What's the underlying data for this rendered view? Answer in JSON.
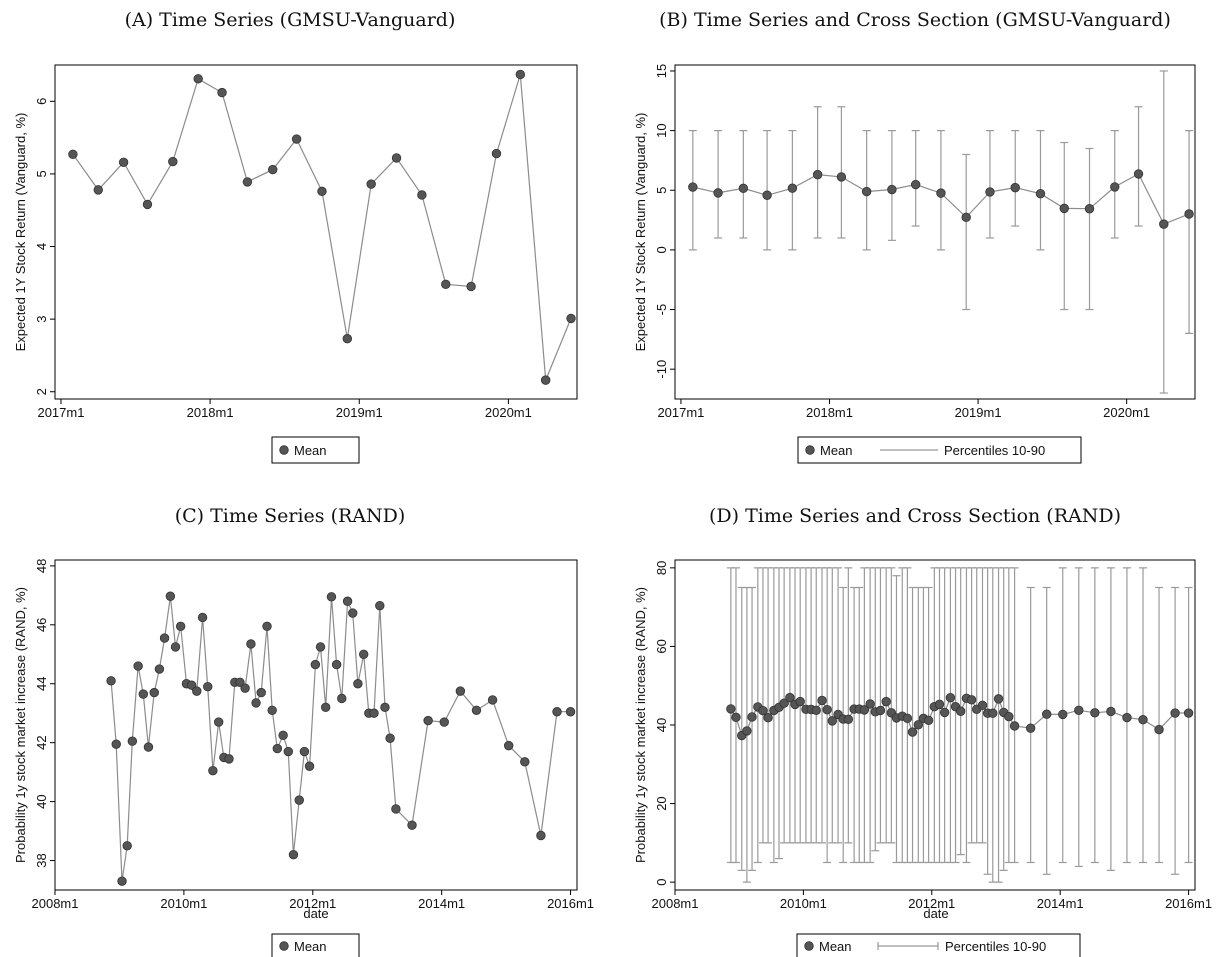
{
  "chart_data": [
    {
      "id": "A",
      "type": "line",
      "title": "(A) Time Series (GMSU-Vanguard)",
      "xlabel": "",
      "ylabel": "Expected 1Y Stock Return (Vanguard, %)",
      "x_ticks": [
        {
          "v": 2017.0,
          "label": "2017m1"
        },
        {
          "v": 2018.0,
          "label": "2018m1"
        },
        {
          "v": 2019.0,
          "label": "2019m1"
        },
        {
          "v": 2020.0,
          "label": "2020m1"
        }
      ],
      "y_ticks": [
        2,
        3,
        4,
        5,
        6
      ],
      "xlim": [
        2016.96,
        2020.46
      ],
      "ylim": [
        1.9,
        6.5
      ],
      "grid": false,
      "legend": {
        "position": "bottom",
        "entries": [
          "Mean"
        ]
      },
      "series": [
        {
          "name": "Mean",
          "x": [
            2017.08,
            2017.25,
            2017.42,
            2017.58,
            2017.75,
            2017.92,
            2018.08,
            2018.25,
            2018.42,
            2018.58,
            2018.75,
            2018.92,
            2019.08,
            2019.25,
            2019.42,
            2019.58,
            2019.75,
            2019.92,
            2020.08,
            2020.25,
            2020.42
          ],
          "y": [
            5.27,
            4.78,
            5.16,
            4.58,
            5.17,
            6.31,
            6.12,
            4.89,
            5.06,
            5.48,
            4.76,
            2.73,
            4.86,
            5.22,
            4.71,
            3.48,
            3.45,
            5.28,
            6.37,
            2.16,
            3.01
          ]
        }
      ]
    },
    {
      "id": "B",
      "type": "line",
      "title": "(B) Time Series and Cross Section (GMSU-Vanguard)",
      "xlabel": "",
      "ylabel": "Expected 1Y Stock Return (Vanguard, %)",
      "x_ticks": [
        {
          "v": 2017.0,
          "label": "2017m1"
        },
        {
          "v": 2018.0,
          "label": "2018m1"
        },
        {
          "v": 2019.0,
          "label": "2019m1"
        },
        {
          "v": 2020.0,
          "label": "2020m1"
        }
      ],
      "y_ticks": [
        -10,
        -5,
        0,
        5,
        10,
        15
      ],
      "xlim": [
        2016.96,
        2020.46
      ],
      "ylim": [
        -12.5,
        15.5
      ],
      "grid": false,
      "legend": {
        "position": "bottom",
        "entries": [
          "Mean",
          "Percentiles 10-90"
        ]
      },
      "series": [
        {
          "name": "Mean",
          "x": [
            2017.08,
            2017.25,
            2017.42,
            2017.58,
            2017.75,
            2017.92,
            2018.08,
            2018.25,
            2018.42,
            2018.58,
            2018.75,
            2018.92,
            2019.08,
            2019.25,
            2019.42,
            2019.58,
            2019.75,
            2019.92,
            2020.08,
            2020.25,
            2020.42
          ],
          "y": [
            5.27,
            4.78,
            5.16,
            4.58,
            5.17,
            6.31,
            6.12,
            4.89,
            5.06,
            5.48,
            4.76,
            2.73,
            4.86,
            5.22,
            4.71,
            3.48,
            3.45,
            5.28,
            6.37,
            2.16,
            3.01
          ]
        },
        {
          "name": "Percentiles 10-90",
          "low": [
            0,
            1,
            1,
            0,
            0,
            1,
            1,
            0,
            0.8,
            2,
            0,
            -5,
            1,
            2,
            0,
            -5,
            -5,
            1,
            2,
            -12,
            -7
          ],
          "high": [
            10,
            10,
            10,
            10,
            10,
            12,
            12,
            10,
            10,
            10,
            10,
            8,
            10,
            10,
            10,
            9,
            8.5,
            10,
            12,
            15,
            10
          ]
        }
      ]
    },
    {
      "id": "C",
      "type": "line",
      "title": "(C) Time Series (RAND)",
      "xlabel": "date",
      "ylabel": "Probability 1y stock market increase (RAND, %)",
      "x_ticks": [
        {
          "v": 2008.0,
          "label": "2008m1"
        },
        {
          "v": 2010.0,
          "label": "2010m1"
        },
        {
          "v": 2012.0,
          "label": "2012m1"
        },
        {
          "v": 2014.0,
          "label": "2014m1"
        },
        {
          "v": 2016.0,
          "label": "2016m1"
        }
      ],
      "y_ticks": [
        38,
        40,
        42,
        44,
        46,
        48
      ],
      "xlim": [
        2008.0,
        2016.1
      ],
      "ylim": [
        37.0,
        48.2
      ],
      "grid": false,
      "legend": {
        "position": "bottom",
        "entries": [
          "Mean"
        ]
      },
      "series": [
        {
          "name": "Mean",
          "x": [
            2008.87,
            2008.95,
            2009.04,
            2009.12,
            2009.2,
            2009.29,
            2009.37,
            2009.45,
            2009.54,
            2009.62,
            2009.7,
            2009.79,
            2009.87,
            2009.95,
            2010.04,
            2010.12,
            2010.2,
            2010.29,
            2010.37,
            2010.45,
            2010.54,
            2010.62,
            2010.7,
            2010.79,
            2010.87,
            2010.95,
            2011.04,
            2011.12,
            2011.2,
            2011.29,
            2011.37,
            2011.45,
            2011.54,
            2011.62,
            2011.7,
            2011.79,
            2011.87,
            2011.95,
            2012.04,
            2012.12,
            2012.2,
            2012.29,
            2012.37,
            2012.45,
            2012.54,
            2012.62,
            2012.7,
            2012.79,
            2012.87,
            2012.95,
            2013.04,
            2013.12,
            2013.2,
            2013.29,
            2013.54,
            2013.79,
            2014.04,
            2014.29,
            2014.54,
            2014.79,
            2015.04,
            2015.29,
            2015.54,
            2015.79,
            2016.0
          ],
          "y": [
            44.1,
            41.95,
            37.3,
            38.5,
            42.05,
            44.6,
            43.65,
            41.85,
            43.7,
            44.5,
            45.55,
            46.97,
            45.25,
            45.95,
            44.0,
            43.95,
            43.75,
            46.25,
            43.9,
            41.05,
            42.7,
            41.5,
            41.45,
            44.05,
            44.05,
            43.85,
            45.35,
            43.35,
            43.7,
            45.95,
            43.1,
            41.8,
            42.25,
            41.7,
            38.2,
            40.05,
            41.7,
            41.2,
            44.65,
            45.25,
            43.2,
            46.95,
            44.65,
            43.5,
            46.8,
            46.4,
            44.0,
            45.0,
            43.0,
            43.0,
            46.65,
            43.2,
            42.15,
            39.75,
            39.2,
            42.75,
            42.7,
            43.75,
            43.1,
            43.45,
            41.9,
            41.35,
            38.85,
            43.05,
            43.05
          ]
        }
      ]
    },
    {
      "id": "D",
      "type": "line",
      "title": "(D) Time Series and Cross Section (RAND)",
      "xlabel": "date",
      "ylabel": "Probability 1y stock market increase (RAND, %)",
      "x_ticks": [
        {
          "v": 2008.0,
          "label": "2008m1"
        },
        {
          "v": 2010.0,
          "label": "2010m1"
        },
        {
          "v": 2012.0,
          "label": "2012m1"
        },
        {
          "v": 2014.0,
          "label": "2014m1"
        },
        {
          "v": 2016.0,
          "label": "2016m1"
        }
      ],
      "y_ticks": [
        0,
        20,
        40,
        60,
        80
      ],
      "xlim": [
        2008.0,
        2016.1
      ],
      "ylim": [
        -2,
        82
      ],
      "grid": false,
      "legend": {
        "position": "bottom",
        "entries": [
          "Mean",
          "Percentiles 10-90"
        ]
      },
      "series": [
        {
          "name": "Mean",
          "x": [
            2008.87,
            2008.95,
            2009.04,
            2009.12,
            2009.2,
            2009.29,
            2009.37,
            2009.45,
            2009.54,
            2009.62,
            2009.7,
            2009.79,
            2009.87,
            2009.95,
            2010.04,
            2010.12,
            2010.2,
            2010.29,
            2010.37,
            2010.45,
            2010.54,
            2010.62,
            2010.7,
            2010.79,
            2010.87,
            2010.95,
            2011.04,
            2011.12,
            2011.2,
            2011.29,
            2011.37,
            2011.45,
            2011.54,
            2011.62,
            2011.7,
            2011.79,
            2011.87,
            2011.95,
            2012.04,
            2012.12,
            2012.2,
            2012.29,
            2012.37,
            2012.45,
            2012.54,
            2012.62,
            2012.7,
            2012.79,
            2012.87,
            2012.95,
            2013.04,
            2013.12,
            2013.2,
            2013.29,
            2013.54,
            2013.79,
            2014.04,
            2014.29,
            2014.54,
            2014.79,
            2015.04,
            2015.29,
            2015.54,
            2015.79,
            2016.0
          ],
          "y": [
            44.1,
            41.95,
            37.3,
            38.5,
            42.05,
            44.6,
            43.65,
            41.85,
            43.7,
            44.5,
            45.55,
            46.97,
            45.25,
            45.95,
            44.0,
            43.95,
            43.75,
            46.25,
            43.9,
            41.05,
            42.7,
            41.5,
            41.45,
            44.05,
            44.05,
            43.85,
            45.35,
            43.35,
            43.7,
            45.95,
            43.1,
            41.8,
            42.25,
            41.7,
            38.2,
            40.05,
            41.7,
            41.2,
            44.65,
            45.25,
            43.2,
            46.95,
            44.65,
            43.5,
            46.8,
            46.4,
            44.0,
            45.0,
            43.0,
            43.0,
            46.65,
            43.2,
            42.15,
            39.75,
            39.2,
            42.75,
            42.7,
            43.75,
            43.1,
            43.45,
            41.9,
            41.35,
            38.85,
            43.05,
            43.05
          ]
        },
        {
          "name": "Percentiles 10-90",
          "low": [
            5,
            5,
            3,
            0,
            3,
            5,
            10,
            10,
            5,
            6,
            10,
            10,
            10,
            10,
            10,
            10,
            10,
            10,
            5,
            10,
            10,
            5,
            10,
            5,
            5,
            5,
            5,
            8,
            10,
            10,
            10,
            5,
            5,
            5,
            5,
            5,
            5,
            5,
            5,
            5,
            5,
            5,
            5,
            7,
            5,
            10,
            10,
            10,
            2,
            0,
            0,
            3,
            5,
            5,
            5,
            2,
            5,
            4,
            5,
            3,
            5,
            5,
            5,
            2,
            5
          ],
          "high": [
            80,
            80,
            75,
            75,
            75,
            80,
            80,
            80,
            80,
            80,
            80,
            80,
            80,
            80,
            80,
            80,
            80,
            80,
            80,
            80,
            80,
            75,
            80,
            75,
            75,
            80,
            80,
            80,
            80,
            80,
            80,
            78,
            80,
            80,
            75,
            75,
            75,
            75,
            80,
            80,
            80,
            80,
            80,
            80,
            80,
            80,
            80,
            80,
            80,
            80,
            80,
            80,
            80,
            80,
            75,
            75,
            80,
            80,
            80,
            80,
            80,
            80,
            75,
            75,
            75
          ]
        }
      ]
    }
  ]
}
